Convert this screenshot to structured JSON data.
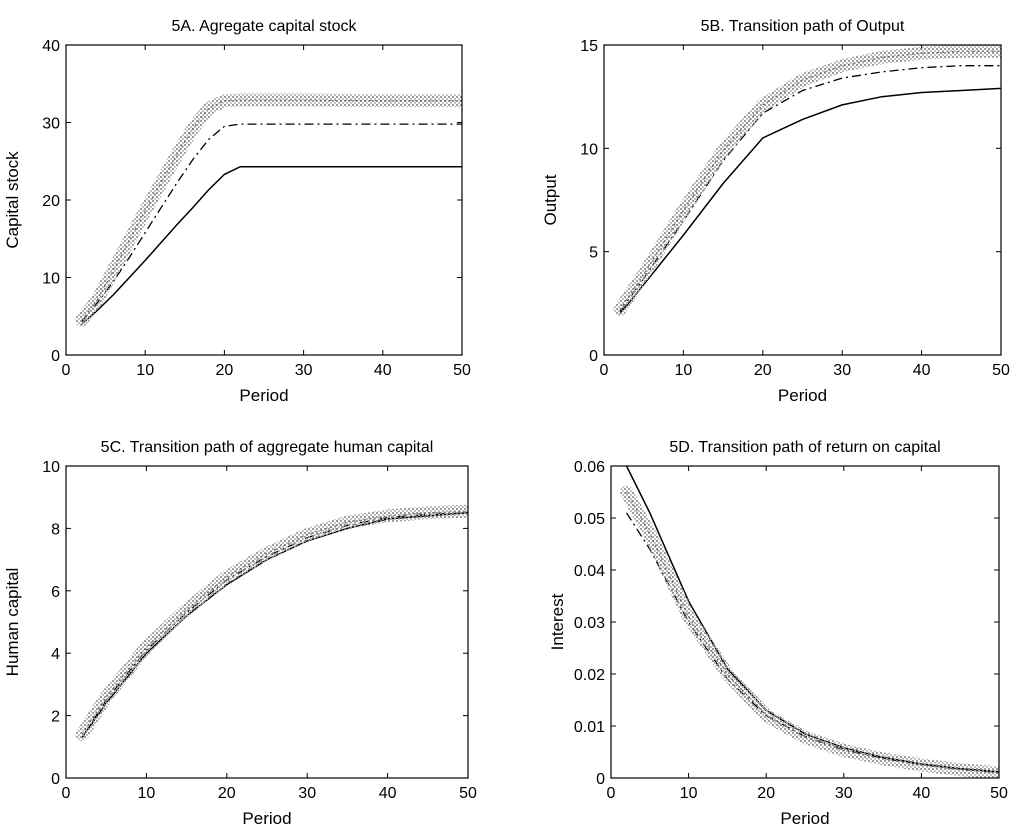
{
  "chart_data": [
    {
      "type": "line",
      "title": "5A. Agregate capital stock",
      "xlabel": "Period",
      "ylabel": "Capital stock",
      "xlim": [
        0,
        50
      ],
      "ylim": [
        0,
        40
      ],
      "xticks": [
        "0",
        "10",
        "20",
        "30",
        "40",
        "50"
      ],
      "yticks": [
        "0",
        "10",
        "20",
        "30",
        "40"
      ],
      "grid": false,
      "series": [
        {
          "style": "solid",
          "color": "#000000",
          "x": [
            2,
            4,
            6,
            8,
            10,
            12,
            14,
            16,
            18,
            20,
            22,
            24,
            30,
            40,
            50
          ],
          "y": [
            4.0,
            5.8,
            7.8,
            10.0,
            12.2,
            14.5,
            16.8,
            19.0,
            21.3,
            23.3,
            24.3,
            24.3,
            24.3,
            24.3,
            24.3
          ]
        },
        {
          "style": "dashed",
          "color": "#000000",
          "x": [
            2,
            4,
            6,
            8,
            10,
            12,
            14,
            16,
            18,
            20,
            22,
            25,
            30,
            40,
            50
          ],
          "y": [
            4.3,
            6.8,
            9.5,
            12.6,
            15.8,
            19.0,
            22.2,
            25.2,
            27.8,
            29.5,
            29.8,
            29.8,
            29.8,
            29.8,
            29.8
          ]
        },
        {
          "style": "shaded-band",
          "color": "#9a9a9a",
          "x": [
            2,
            4,
            6,
            8,
            10,
            12,
            14,
            16,
            18,
            20,
            22,
            25,
            30,
            40,
            50
          ],
          "y": [
            4.5,
            7.2,
            11.0,
            14.8,
            18.6,
            22.2,
            25.8,
            29.2,
            31.8,
            32.8,
            32.9,
            32.9,
            32.9,
            32.8,
            32.8
          ]
        }
      ]
    },
    {
      "type": "line",
      "title": "5B. Transition path of Output",
      "xlabel": "Period",
      "ylabel": "Output",
      "xlim": [
        0,
        50
      ],
      "ylim": [
        0,
        15
      ],
      "xticks": [
        "0",
        "10",
        "20",
        "30",
        "40",
        "50"
      ],
      "yticks": [
        "0",
        "5",
        "10",
        "15"
      ],
      "grid": false,
      "series": [
        {
          "style": "solid",
          "color": "#000000",
          "x": [
            2,
            5,
            10,
            15,
            20,
            25,
            30,
            35,
            40,
            45,
            50
          ],
          "y": [
            2.0,
            3.4,
            5.8,
            8.3,
            10.5,
            11.4,
            12.1,
            12.5,
            12.7,
            12.8,
            12.9
          ]
        },
        {
          "style": "dashed",
          "color": "#000000",
          "x": [
            2,
            5,
            10,
            15,
            20,
            25,
            30,
            35,
            40,
            45,
            50
          ],
          "y": [
            2.1,
            3.7,
            6.5,
            9.4,
            11.7,
            12.8,
            13.4,
            13.7,
            13.9,
            14.0,
            14.0
          ]
        },
        {
          "style": "shaded-band",
          "color": "#9a9a9a",
          "x": [
            2,
            5,
            10,
            15,
            20,
            25,
            30,
            35,
            40,
            45,
            50
          ],
          "y": [
            2.2,
            3.9,
            7.0,
            9.9,
            12.1,
            13.3,
            14.0,
            14.4,
            14.6,
            14.7,
            14.7
          ]
        }
      ]
    },
    {
      "type": "line",
      "title": "5C. Transition path of aggregate human capital",
      "xlabel": "Period",
      "ylabel": "Human capital",
      "xlim": [
        0,
        50
      ],
      "ylim": [
        0,
        10
      ],
      "xticks": [
        "0",
        "10",
        "20",
        "30",
        "40",
        "50"
      ],
      "yticks": [
        "0",
        "2",
        "4",
        "6",
        "8",
        "10"
      ],
      "grid": false,
      "series": [
        {
          "style": "solid",
          "color": "#000000",
          "x": [
            2,
            5,
            10,
            15,
            20,
            25,
            30,
            35,
            40,
            45,
            50
          ],
          "y": [
            1.3,
            2.4,
            4.0,
            5.2,
            6.2,
            7.0,
            7.6,
            8.0,
            8.3,
            8.4,
            8.5
          ]
        },
        {
          "style": "dashed",
          "color": "#000000",
          "x": [
            2,
            5,
            10,
            15,
            20,
            25,
            30,
            35,
            40,
            45,
            50
          ],
          "y": [
            1.3,
            2.5,
            4.1,
            5.3,
            6.35,
            7.1,
            7.7,
            8.1,
            8.35,
            8.45,
            8.5
          ]
        },
        {
          "style": "shaded-band",
          "color": "#9a9a9a",
          "x": [
            2,
            5,
            10,
            15,
            20,
            25,
            30,
            35,
            40,
            45,
            50
          ],
          "y": [
            1.4,
            2.6,
            4.2,
            5.4,
            6.45,
            7.2,
            7.8,
            8.2,
            8.4,
            8.5,
            8.55
          ]
        }
      ]
    },
    {
      "type": "line",
      "title": "5D. Transition path of return on capital",
      "xlabel": "Period",
      "ylabel": "Interest",
      "xlim": [
        0,
        50
      ],
      "ylim": [
        0,
        0.06
      ],
      "xticks": [
        "0",
        "10",
        "20",
        "30",
        "40",
        "50"
      ],
      "yticks": [
        "0",
        "0.01",
        "0.02",
        "0.03",
        "0.04",
        "0.05",
        "0.06"
      ],
      "grid": false,
      "series": [
        {
          "style": "solid",
          "color": "#000000",
          "x": [
            2,
            5,
            10,
            15,
            20,
            25,
            30,
            35,
            40,
            45,
            50
          ],
          "y": [
            0.06,
            0.051,
            0.034,
            0.021,
            0.013,
            0.0085,
            0.0058,
            0.004,
            0.0027,
            0.0018,
            0.0012
          ]
        },
        {
          "style": "dashed",
          "color": "#000000",
          "x": [
            2,
            5,
            10,
            15,
            20,
            25,
            30,
            35,
            40,
            45,
            50
          ],
          "y": [
            0.051,
            0.044,
            0.03,
            0.019,
            0.012,
            0.008,
            0.0055,
            0.0038,
            0.0026,
            0.0017,
            0.0011
          ]
        },
        {
          "style": "shaded-band",
          "color": "#9a9a9a",
          "x": [
            2,
            5,
            10,
            15,
            20,
            25,
            30,
            35,
            40,
            45,
            50
          ],
          "y": [
            0.055,
            0.047,
            0.031,
            0.02,
            0.012,
            0.0078,
            0.0053,
            0.0037,
            0.0025,
            0.0016,
            0.001
          ]
        }
      ]
    }
  ]
}
